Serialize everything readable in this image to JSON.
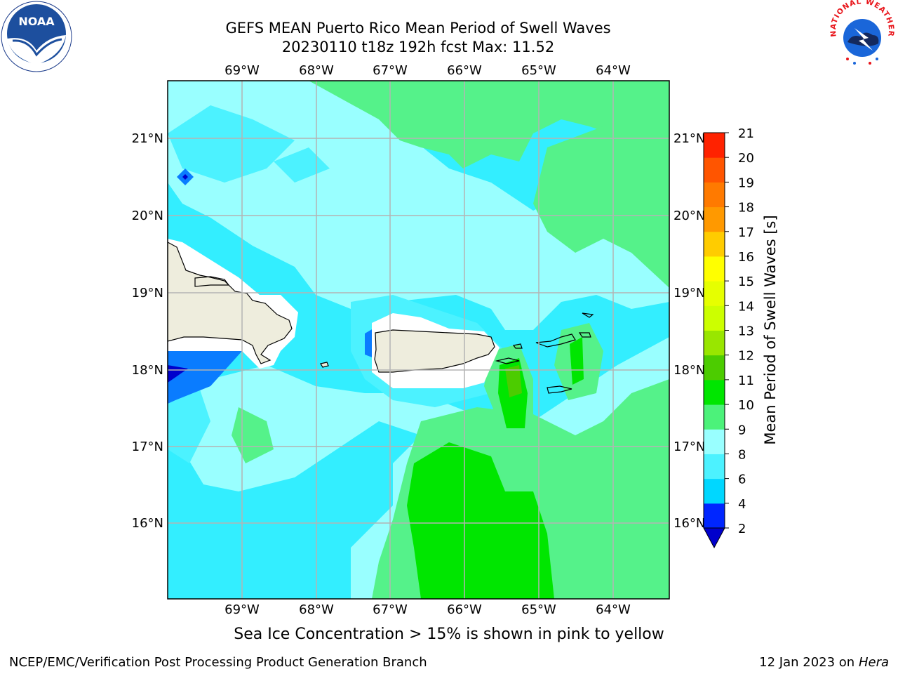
{
  "title_line1": "GEFS MEAN Puerto Rico Mean Period of Swell Waves",
  "title_line2": "20230110 t18z 192h fcst   Max: 11.52",
  "subcaption": "Sea Ice Concentration > 15% is shown in pink to yellow",
  "footer_left": "NCEP/EMC/Verification Post Processing Product Generation Branch",
  "footer_date": "12 Jan 2023 on ",
  "footer_machine": "Hera",
  "logos": {
    "noaa_text": "NOAA",
    "nws_text": "NATIONAL WEATHER SERVICE"
  },
  "map": {
    "lon_labels": [
      "69°W",
      "68°W",
      "67°W",
      "66°W",
      "65°W",
      "64°W"
    ],
    "lat_labels": [
      "21°N",
      "20°N",
      "19°N",
      "18°N",
      "17°N",
      "16°N"
    ],
    "lon_min": -70.0,
    "lon_max": -63.25,
    "lat_min": 15.0,
    "lat_max": 21.75,
    "max_value": 11.52
  },
  "colorbar": {
    "label": "Mean Period of Swell Waves [s]",
    "ticks": [
      "2",
      "4",
      "6",
      "8",
      "9",
      "10",
      "11",
      "12",
      "13",
      "14",
      "15",
      "16",
      "17",
      "18",
      "19",
      "20",
      "21"
    ],
    "colors": [
      "#0026ff",
      "#00d7ff",
      "#4cf2ff",
      "#99ffff",
      "#4cf27a",
      "#00e600",
      "#4ccc00",
      "#99e600",
      "#ccff00",
      "#e6ff00",
      "#ffff00",
      "#ffcc00",
      "#ff9900",
      "#ff7a00",
      "#ff5500",
      "#ff2200"
    ],
    "under_color": "#0000cc"
  },
  "colors": {
    "land": "#eeeddd",
    "ocean_base": "#33eeff",
    "grid": "#b4b4b4"
  }
}
